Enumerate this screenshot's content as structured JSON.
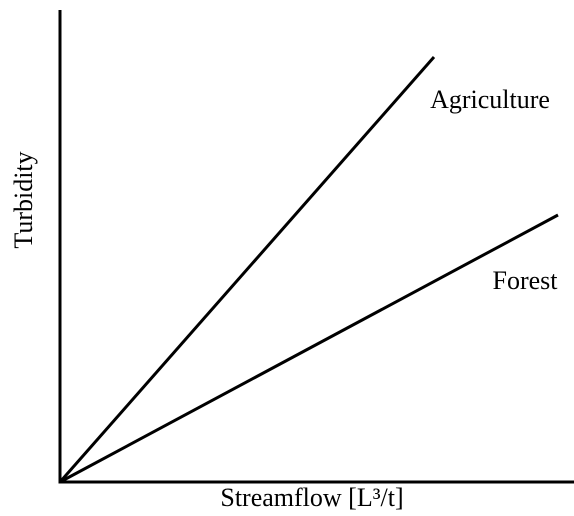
{
  "chart_data": {
    "type": "line",
    "x_label": "Streamflow [L³/t]",
    "y_label": "Turbidity",
    "series": [
      {
        "name": "Agriculture",
        "color": "#000000"
      },
      {
        "name": "Forest",
        "color": "#000000"
      }
    ]
  }
}
